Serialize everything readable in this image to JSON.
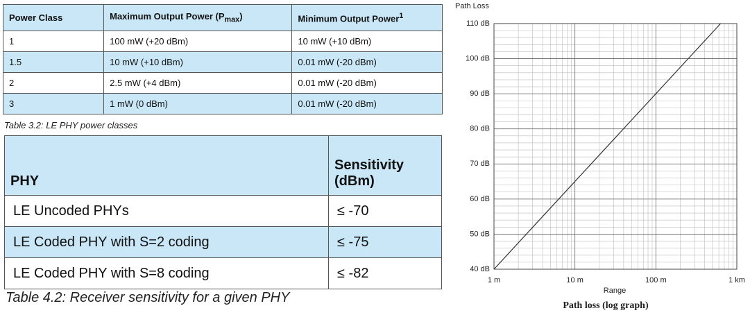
{
  "table1": {
    "header": [
      {
        "text": "Power Class"
      },
      {
        "text": "Maximum Output Power (P",
        "sub": "max",
        "after": ")"
      },
      {
        "text": "Minimum Output Power",
        "sup": "1"
      }
    ],
    "rows": [
      [
        "1",
        "100 mW (+20 dBm)",
        "10 mW (+10 dBm)"
      ],
      [
        "1.5",
        "10 mW (+10 dBm)",
        "0.01 mW (-20 dBm)"
      ],
      [
        "2",
        "2.5 mW (+4 dBm)",
        "0.01 mW (-20 dBm)"
      ],
      [
        "3",
        "1 mW (0 dBm)",
        "0.01 mW (-20 dBm)"
      ]
    ],
    "caption": "Table 3.2:  LE PHY power classes"
  },
  "table2": {
    "header": [
      "PHY",
      "Sensitivity (dBm)"
    ],
    "rows": [
      [
        "LE Uncoded PHYs",
        "≤ -70"
      ],
      [
        "LE Coded PHY with S=2 coding",
        "≤ -75"
      ],
      [
        "LE Coded PHY with S=8 coding",
        "≤ -82"
      ]
    ],
    "caption": "Table 4.2:  Receiver sensitivity for a given PHY"
  },
  "chart_data": {
    "type": "line",
    "y_label": "Path Loss",
    "x_label": "Range",
    "caption": "Path loss (log graph)",
    "x": [
      1,
      630
    ],
    "series": [
      {
        "color": "#333333",
        "values": [
          40,
          110
        ]
      }
    ],
    "xlim": [
      1,
      1000
    ],
    "xticks": [
      {
        "value": 1,
        "label": "1 m"
      },
      {
        "value": 10,
        "label": "10 m"
      },
      {
        "value": 100,
        "label": "100 m"
      },
      {
        "value": 1000,
        "label": "1 km"
      }
    ],
    "ylim": [
      40,
      110
    ],
    "yticks": [
      {
        "value": 40,
        "label": "40 dB"
      },
      {
        "value": 50,
        "label": "50 dB"
      },
      {
        "value": 60,
        "label": "60 dB"
      },
      {
        "value": 70,
        "label": "70 dB"
      },
      {
        "value": 80,
        "label": "80 dB"
      },
      {
        "value": 90,
        "label": "90 dB"
      },
      {
        "value": 100,
        "label": "100 dB"
      },
      {
        "value": 110,
        "label": "110 dB"
      }
    ],
    "xscale": "log",
    "grid": true
  }
}
